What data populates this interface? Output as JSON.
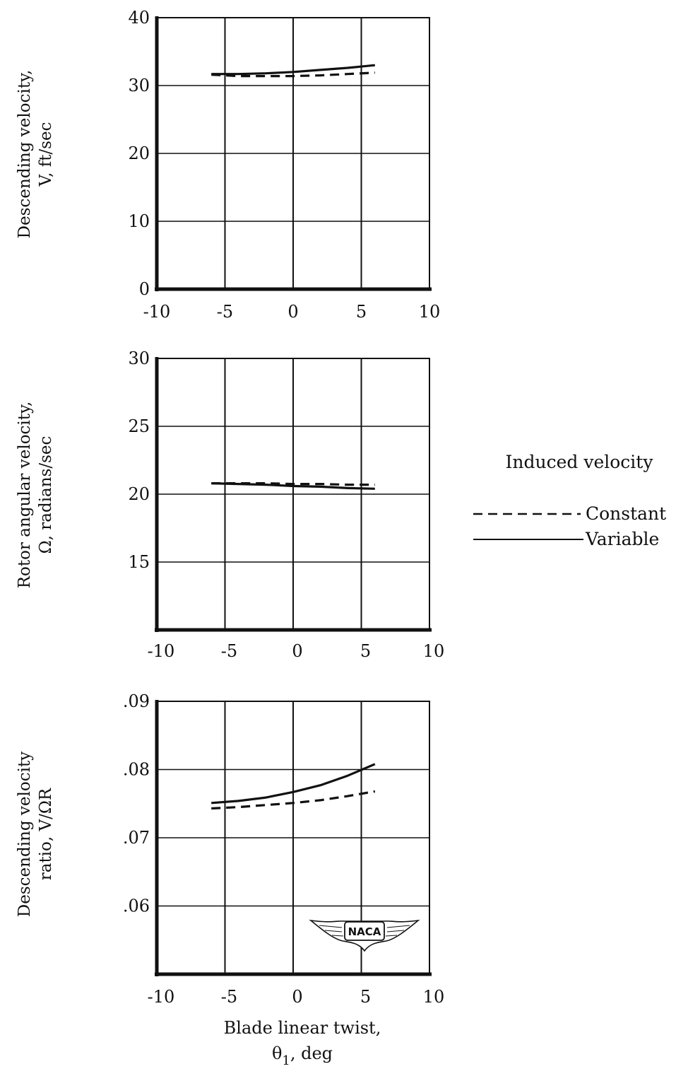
{
  "legend": {
    "title": "Induced velocity",
    "constant_label": "Constant",
    "variable_label": "Variable"
  },
  "xlabel": {
    "line1": "Blade linear twist,",
    "symbol": "θ",
    "subscript": "1",
    "unit": ", deg"
  },
  "badge": "NACA",
  "chart_data": [
    {
      "type": "line",
      "ylabel_line1": "Descending velocity,",
      "ylabel_line2": "V, ft/sec",
      "xlim": [
        -10,
        10
      ],
      "ylim": [
        0,
        40
      ],
      "xticks": [
        -10,
        -5,
        0,
        5,
        10
      ],
      "xtick_labels": [
        "-10",
        "-5",
        "0",
        "5",
        "10"
      ],
      "yticks": [
        0,
        10,
        20,
        30,
        40
      ],
      "ytick_labels": [
        "0",
        "10",
        "20",
        "30",
        "40"
      ],
      "grid": true,
      "series": [
        {
          "name": "Constant",
          "style": "dashed",
          "x": [
            -6,
            -4,
            -2,
            0,
            2,
            4,
            6
          ],
          "y": [
            31.6,
            31.4,
            31.4,
            31.4,
            31.5,
            31.7,
            31.9
          ]
        },
        {
          "name": "Variable",
          "style": "solid",
          "x": [
            -6,
            -4,
            -2,
            0,
            2,
            4,
            6
          ],
          "y": [
            31.7,
            31.7,
            31.8,
            32.0,
            32.3,
            32.6,
            33.0
          ]
        }
      ]
    },
    {
      "type": "line",
      "ylabel_line1": "Rotor angular velocity,",
      "ylabel_line2": "Ω, radians/sec",
      "xlim": [
        -10,
        10
      ],
      "ylim": [
        10,
        30
      ],
      "xticks": [
        -10,
        -5,
        0,
        5,
        10
      ],
      "xtick_labels": [
        "-10",
        "-5",
        "0",
        "5",
        "10"
      ],
      "yticks": [
        15,
        20,
        25,
        30
      ],
      "ytick_labels": [
        "15",
        "20",
        "25",
        "30"
      ],
      "grid": true,
      "series": [
        {
          "name": "Constant",
          "style": "dashed",
          "x": [
            -6,
            -4,
            -2,
            0,
            2,
            4,
            6
          ],
          "y": [
            20.8,
            20.8,
            20.8,
            20.75,
            20.75,
            20.7,
            20.7
          ]
        },
        {
          "name": "Variable",
          "style": "solid",
          "x": [
            -6,
            -4,
            -2,
            0,
            2,
            4,
            6
          ],
          "y": [
            20.8,
            20.75,
            20.7,
            20.6,
            20.55,
            20.45,
            20.4
          ]
        }
      ]
    },
    {
      "type": "line",
      "ylabel_line1": "Descending velocity",
      "ylabel_line2": "ratio,  V/ΩR",
      "xlim": [
        -10,
        10
      ],
      "ylim": [
        0.05,
        0.09
      ],
      "xticks": [
        -10,
        -5,
        0,
        5,
        10
      ],
      "xtick_labels": [
        "-10",
        "-5",
        "0",
        "5",
        "10"
      ],
      "yticks": [
        0.06,
        0.07,
        0.08,
        0.09
      ],
      "ytick_labels": [
        ".06",
        ".07",
        ".08",
        ".09"
      ],
      "grid": true,
      "series": [
        {
          "name": "Constant",
          "style": "dashed",
          "x": [
            -6,
            -4,
            -2,
            0,
            2,
            4,
            6
          ],
          "y": [
            0.0743,
            0.0745,
            0.0748,
            0.0751,
            0.0755,
            0.0761,
            0.0768
          ]
        },
        {
          "name": "Variable",
          "style": "solid",
          "x": [
            -6,
            -4,
            -2,
            0,
            2,
            4,
            6
          ],
          "y": [
            0.0751,
            0.0754,
            0.0759,
            0.0767,
            0.0777,
            0.0791,
            0.0808
          ]
        }
      ]
    }
  ]
}
